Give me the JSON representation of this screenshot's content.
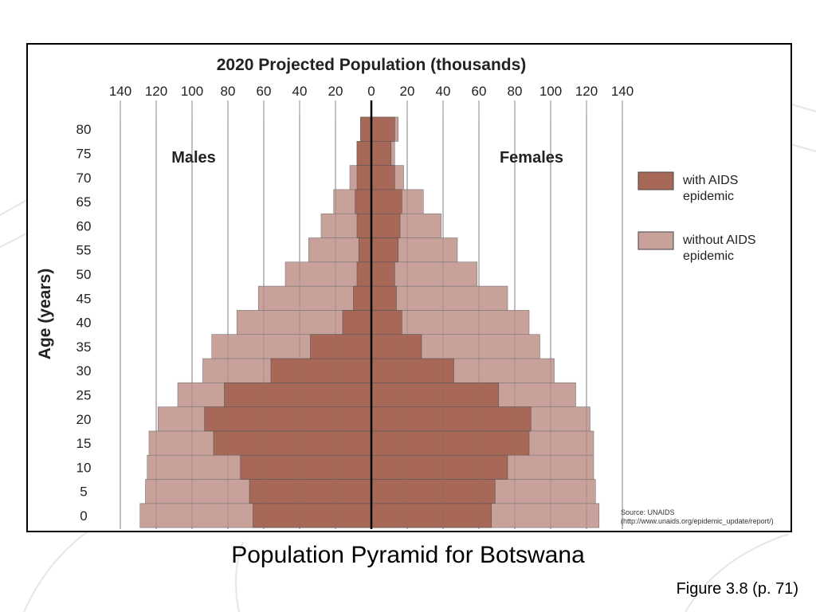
{
  "slide": {
    "caption": "Population Pyramid for Botswana",
    "figure_ref": "Figure 3.8 (p. 71)"
  },
  "colors": {
    "with_aids": "#a86857",
    "without_aids": "#c9a19b",
    "grid": "#8a8a8a",
    "axis": "#000000"
  },
  "chart_data": {
    "type": "bar",
    "orientation": "horizontal-pyramid",
    "title": "2020 Projected Population (thousands)",
    "ylabel": "Age (years)",
    "left_label": "Males",
    "right_label": "Females",
    "x_ticks": [
      "140",
      "120",
      "100",
      "80",
      "60",
      "40",
      "20",
      "0",
      "20",
      "40",
      "60",
      "80",
      "100",
      "120",
      "140"
    ],
    "xlim": [
      -140,
      140
    ],
    "categories": [
      "0",
      "5",
      "10",
      "15",
      "20",
      "25",
      "30",
      "35",
      "40",
      "45",
      "50",
      "55",
      "60",
      "65",
      "70",
      "75",
      "80"
    ],
    "series": [
      {
        "name": "with AIDS epidemic",
        "males": [
          66,
          68,
          73,
          88,
          93,
          82,
          56,
          34,
          16,
          10,
          8,
          7,
          8,
          9,
          8,
          8,
          6
        ],
        "females": [
          67,
          69,
          76,
          88,
          89,
          71,
          46,
          28,
          17,
          14,
          13,
          15,
          16,
          17,
          13,
          11,
          13
        ]
      },
      {
        "name": "without AIDS epidemic",
        "males": [
          129,
          126,
          125,
          124,
          119,
          108,
          94,
          89,
          75,
          63,
          48,
          35,
          28,
          21,
          12,
          8,
          6
        ],
        "females": [
          127,
          125,
          124,
          124,
          122,
          114,
          102,
          94,
          88,
          76,
          59,
          48,
          39,
          29,
          18,
          13,
          15
        ]
      }
    ],
    "legend": [
      "with AIDS\nepidemic",
      "without AIDS\nepidemic"
    ],
    "legend_position": "right",
    "grid": true,
    "source_note": [
      "Source: UNAIDS",
      "(http://www.unaids.org/epidemic_update/report/)"
    ]
  }
}
